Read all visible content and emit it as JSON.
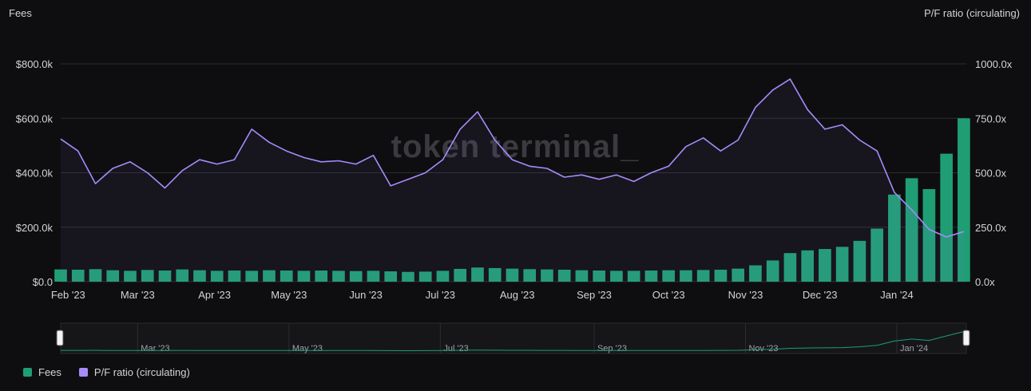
{
  "colors": {
    "fees": "#1f9e74",
    "pf_ratio": "#a78bfa",
    "grid": "#2c2c31",
    "background": "#0e0e10"
  },
  "watermark": "token terminal_",
  "legend": [
    {
      "name": "Fees",
      "color": "#1f9e74"
    },
    {
      "name": "P/F ratio (circulating)",
      "color": "#a78bfa"
    }
  ],
  "navigator": {
    "labels": [
      "Mar '23",
      "May '23",
      "Jul '23",
      "Sep '23",
      "Nov '23",
      "Jan '24"
    ]
  },
  "chart_data": {
    "type": "bar",
    "title": "",
    "left_axis_title": "Fees",
    "right_axis_title": "P/F ratio (circulating)",
    "left_ticks": [
      "$0.0",
      "$200.0k",
      "$400.0k",
      "$600.0k",
      "$800.0k"
    ],
    "right_ticks": [
      "0.0x",
      "250.0x",
      "500.0x",
      "750.0x",
      "1000.0x"
    ],
    "x_ticks": [
      "Feb '23",
      "Mar '23",
      "Apr '23",
      "May '23",
      "Jun '23",
      "Jul '23",
      "Aug '23",
      "Sep '23",
      "Oct '23",
      "Nov '23",
      "Dec '23",
      "Jan '24"
    ],
    "x_range": [
      "2023-01-29",
      "2024-01-29"
    ],
    "y_left_range": [
      0,
      800000
    ],
    "y_right_range": [
      0,
      1000
    ],
    "grid": true,
    "legend_position": "bottom-left",
    "series": [
      {
        "name": "Fees",
        "type": "bar",
        "axis": "left",
        "points": [
          [
            "2023-01-29",
            45000
          ],
          [
            "2023-02-05",
            44000
          ],
          [
            "2023-02-12",
            46000
          ],
          [
            "2023-02-19",
            42000
          ],
          [
            "2023-02-26",
            40000
          ],
          [
            "2023-03-05",
            43000
          ],
          [
            "2023-03-12",
            41000
          ],
          [
            "2023-03-19",
            45000
          ],
          [
            "2023-03-26",
            42000
          ],
          [
            "2023-04-02",
            40000
          ],
          [
            "2023-04-09",
            41000
          ],
          [
            "2023-04-16",
            40000
          ],
          [
            "2023-04-23",
            42000
          ],
          [
            "2023-04-30",
            41000
          ],
          [
            "2023-05-07",
            40000
          ],
          [
            "2023-05-14",
            41000
          ],
          [
            "2023-05-21",
            40000
          ],
          [
            "2023-05-28",
            39000
          ],
          [
            "2023-06-04",
            40000
          ],
          [
            "2023-06-11",
            38000
          ],
          [
            "2023-06-18",
            36000
          ],
          [
            "2023-06-25",
            37000
          ],
          [
            "2023-07-02",
            40000
          ],
          [
            "2023-07-09",
            47000
          ],
          [
            "2023-07-16",
            52000
          ],
          [
            "2023-07-23",
            50000
          ],
          [
            "2023-07-30",
            48000
          ],
          [
            "2023-08-06",
            46000
          ],
          [
            "2023-08-13",
            45000
          ],
          [
            "2023-08-20",
            44000
          ],
          [
            "2023-08-27",
            42000
          ],
          [
            "2023-09-03",
            41000
          ],
          [
            "2023-09-10",
            40000
          ],
          [
            "2023-09-17",
            40000
          ],
          [
            "2023-09-24",
            41000
          ],
          [
            "2023-10-01",
            42000
          ],
          [
            "2023-10-08",
            42000
          ],
          [
            "2023-10-15",
            43000
          ],
          [
            "2023-10-22",
            44000
          ],
          [
            "2023-10-29",
            48000
          ],
          [
            "2023-11-05",
            60000
          ],
          [
            "2023-11-12",
            78000
          ],
          [
            "2023-11-19",
            105000
          ],
          [
            "2023-11-26",
            115000
          ],
          [
            "2023-12-03",
            120000
          ],
          [
            "2023-12-10",
            128000
          ],
          [
            "2023-12-17",
            150000
          ],
          [
            "2023-12-24",
            195000
          ],
          [
            "2023-12-31",
            320000
          ],
          [
            "2024-01-07",
            380000
          ],
          [
            "2024-01-14",
            340000
          ],
          [
            "2024-01-21",
            470000
          ],
          [
            "2024-01-28",
            600000
          ]
        ]
      },
      {
        "name": "P/F ratio (circulating)",
        "type": "line",
        "axis": "right",
        "points": [
          [
            "2023-01-29",
            655
          ],
          [
            "2023-02-05",
            600
          ],
          [
            "2023-02-12",
            450
          ],
          [
            "2023-02-19",
            520
          ],
          [
            "2023-02-26",
            550
          ],
          [
            "2023-03-05",
            500
          ],
          [
            "2023-03-12",
            430
          ],
          [
            "2023-03-19",
            510
          ],
          [
            "2023-03-26",
            560
          ],
          [
            "2023-04-02",
            540
          ],
          [
            "2023-04-09",
            560
          ],
          [
            "2023-04-16",
            700
          ],
          [
            "2023-04-23",
            640
          ],
          [
            "2023-04-30",
            600
          ],
          [
            "2023-05-07",
            570
          ],
          [
            "2023-05-14",
            550
          ],
          [
            "2023-05-21",
            555
          ],
          [
            "2023-05-28",
            540
          ],
          [
            "2023-06-04",
            580
          ],
          [
            "2023-06-11",
            440
          ],
          [
            "2023-06-18",
            470
          ],
          [
            "2023-06-25",
            500
          ],
          [
            "2023-07-02",
            560
          ],
          [
            "2023-07-09",
            700
          ],
          [
            "2023-07-16",
            780
          ],
          [
            "2023-07-23",
            650
          ],
          [
            "2023-07-30",
            560
          ],
          [
            "2023-08-06",
            530
          ],
          [
            "2023-08-13",
            520
          ],
          [
            "2023-08-20",
            480
          ],
          [
            "2023-08-27",
            490
          ],
          [
            "2023-09-03",
            470
          ],
          [
            "2023-09-10",
            490
          ],
          [
            "2023-09-17",
            460
          ],
          [
            "2023-09-24",
            500
          ],
          [
            "2023-10-01",
            530
          ],
          [
            "2023-10-08",
            620
          ],
          [
            "2023-10-15",
            660
          ],
          [
            "2023-10-22",
            600
          ],
          [
            "2023-10-29",
            650
          ],
          [
            "2023-11-05",
            800
          ],
          [
            "2023-11-12",
            880
          ],
          [
            "2023-11-19",
            930
          ],
          [
            "2023-11-26",
            790
          ],
          [
            "2023-12-03",
            700
          ],
          [
            "2023-12-10",
            720
          ],
          [
            "2023-12-17",
            650
          ],
          [
            "2023-12-24",
            600
          ],
          [
            "2023-12-31",
            410
          ],
          [
            "2024-01-07",
            330
          ],
          [
            "2024-01-14",
            240
          ],
          [
            "2024-01-21",
            205
          ],
          [
            "2024-01-28",
            230
          ]
        ]
      }
    ]
  }
}
